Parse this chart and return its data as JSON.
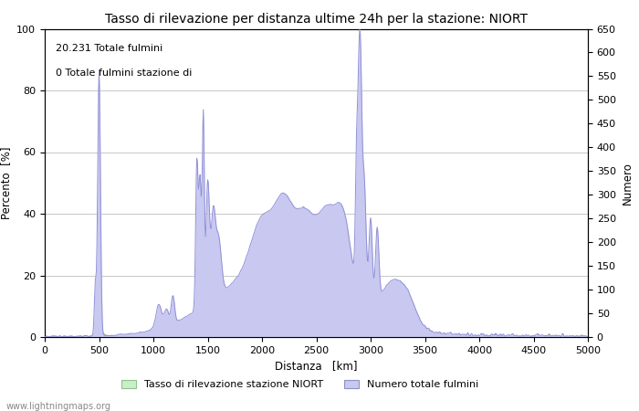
{
  "title": "Tasso di rilevazione per distanza ultime 24h per la stazione: NIORT",
  "xlabel": "Distanza   [km]",
  "ylabel_left": "Percento  [%]",
  "ylabel_right": "Numero",
  "annotation_line1": "20.231 Totale fulmini",
  "annotation_line2": "0 Totale fulmini stazione di",
  "xlim": [
    0,
    5000
  ],
  "ylim_left": [
    0,
    100
  ],
  "ylim_right": [
    0,
    650
  ],
  "xticks": [
    0,
    500,
    1000,
    1500,
    2000,
    2500,
    3000,
    3500,
    4000,
    4500,
    5000
  ],
  "yticks_left": [
    0,
    20,
    40,
    60,
    80,
    100
  ],
  "yticks_right": [
    0,
    50,
    100,
    150,
    200,
    250,
    300,
    350,
    400,
    450,
    500,
    550,
    600,
    650
  ],
  "legend_label_green": "Tasso di rilevazione stazione NIORT",
  "legend_label_blue": "Numero totale fulmini",
  "watermark": "www.lightningmaps.org",
  "fill_green_color": "#c8f0c8",
  "fill_blue_color": "#c8c8f0",
  "line_color": "#9090d8",
  "background_color": "#ffffff",
  "grid_color": "#c8c8c8"
}
